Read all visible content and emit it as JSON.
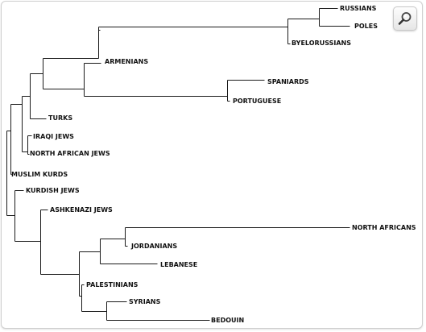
{
  "tree": {
    "leaves": [
      {
        "id": "russians",
        "label": "RUSSIANS"
      },
      {
        "id": "poles",
        "label": "POLES"
      },
      {
        "id": "byelorussians",
        "label": "BYELORUSSIANS"
      },
      {
        "id": "armenians",
        "label": "ARMENIANS"
      },
      {
        "id": "spaniards",
        "label": "SPANIARDS"
      },
      {
        "id": "portuguese",
        "label": "PORTUGUESE"
      },
      {
        "id": "turks",
        "label": "TURKS"
      },
      {
        "id": "iraqi-jews",
        "label": "IRAQI JEWS"
      },
      {
        "id": "north-african-jews",
        "label": "NORTH AFRICAN JEWS"
      },
      {
        "id": "muslim-kurds",
        "label": "MUSLIM KURDS"
      },
      {
        "id": "kurdish-jews",
        "label": "KURDISH JEWS"
      },
      {
        "id": "ashkenazi-jews",
        "label": "ASHKENAZI JEWS"
      },
      {
        "id": "north-africans",
        "label": "NORTH AFRICANS"
      },
      {
        "id": "jordanians",
        "label": "JORDANIANS"
      },
      {
        "id": "lebanese",
        "label": "LEBANESE"
      },
      {
        "id": "palestinians",
        "label": "PALESTINIANS"
      },
      {
        "id": "syrians",
        "label": "SYRIANS"
      },
      {
        "id": "bedouin",
        "label": "BEDOUIN"
      }
    ]
  },
  "toolbar": {
    "zoom_icon": "magnifier-icon"
  }
}
